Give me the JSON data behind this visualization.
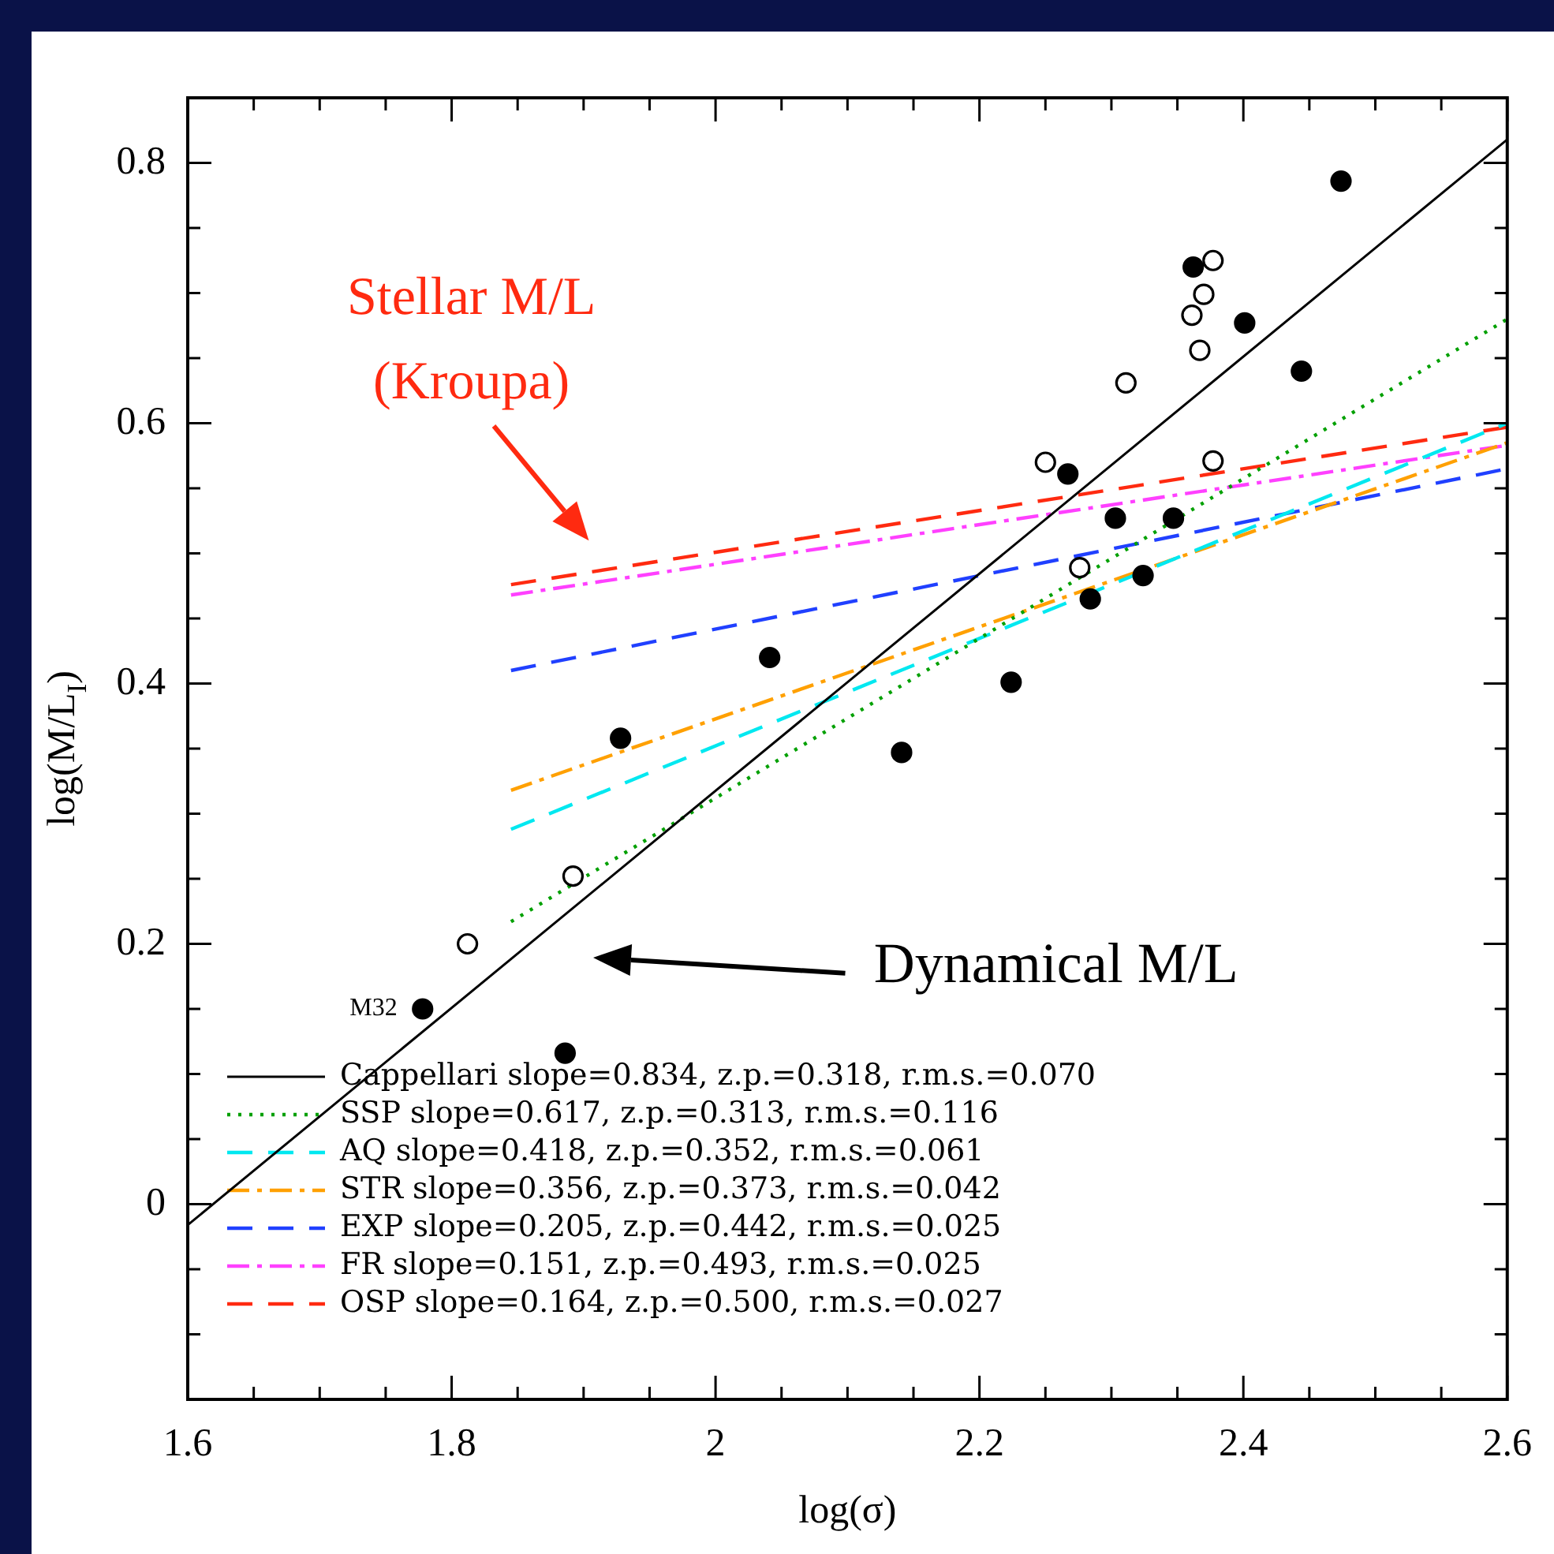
{
  "chart_data": {
    "type": "scatter",
    "xlabel": "log(σ)",
    "ylabel": "log(M/L$_{I}$)",
    "xlim": [
      1.6,
      2.6
    ],
    "ylim": [
      -0.15,
      0.85
    ],
    "xticks": [
      1.6,
      {
        "value": 1.65,
        "label": null
      },
      {
        "value": 1.7,
        "label": null
      },
      {
        "value": 1.75,
        "label": null
      },
      1.8,
      {
        "value": 1.85,
        "label": null
      },
      {
        "value": 1.9,
        "label": null
      },
      {
        "value": 1.95,
        "label": null
      },
      2,
      {
        "value": 2.05,
        "label": null
      },
      {
        "value": 2.1,
        "label": null
      },
      {
        "value": 2.15,
        "label": null
      },
      2.2,
      {
        "value": 2.25,
        "label": null
      },
      {
        "value": 2.3,
        "label": null
      },
      {
        "value": 2.35,
        "label": null
      },
      2.4,
      {
        "value": 2.45,
        "label": null
      },
      {
        "value": 2.5,
        "label": null
      },
      {
        "value": 2.55,
        "label": null
      },
      2.6
    ],
    "yticks": [
      {
        "value": -0.15,
        "label": null
      },
      {
        "value": -0.1,
        "label": null
      },
      {
        "value": -0.05,
        "label": null
      },
      0,
      {
        "value": 0.05,
        "label": null
      },
      {
        "value": 0.1,
        "label": null
      },
      {
        "value": 0.15,
        "label": null
      },
      0.2,
      {
        "value": 0.25,
        "label": null
      },
      {
        "value": 0.3,
        "label": null
      },
      {
        "value": 0.35,
        "label": null
      },
      0.4,
      {
        "value": 0.45,
        "label": null
      },
      {
        "value": 0.5,
        "label": null
      },
      {
        "value": 0.55,
        "label": null
      },
      0.6,
      {
        "value": 0.65,
        "label": null
      },
      {
        "value": 0.7,
        "label": null
      },
      {
        "value": 0.75,
        "label": null
      },
      0.8,
      {
        "value": 0.85,
        "label": null
      }
    ],
    "grid": false,
    "legend": "bottom left",
    "series": [
      {
        "marker": "circle",
        "color": "#000000",
        "x": [
          1.778,
          1.886,
          1.928,
          2.041,
          2.141,
          2.224,
          2.267,
          2.284,
          2.303,
          2.324,
          2.347,
          2.362,
          2.401,
          2.444,
          2.474
        ],
        "values": [
          0.15,
          0.116,
          0.358,
          0.42,
          0.347,
          0.401,
          0.561,
          0.465,
          0.527,
          0.483,
          0.527,
          0.72,
          0.677,
          0.64,
          0.786
        ]
      },
      {
        "marker": "circle_open",
        "color": "#000000",
        "x": [
          1.812,
          1.892,
          2.25,
          2.276,
          2.311,
          2.361,
          2.367,
          2.37,
          2.377,
          2.377
        ],
        "values": [
          0.2,
          0.252,
          0.57,
          0.489,
          0.631,
          0.683,
          0.656,
          0.699,
          0.725,
          0.571
        ]
      },
      {
        "type": "line",
        "name": "Cappellari slope=0.834, z.p.=0.318, r.m.s.=0.070",
        "color": "#000000",
        "line_style": "solid",
        "x": [
          1.6,
          2.6
        ],
        "values": [
          -0.016,
          0.818
        ]
      },
      {
        "type": "line",
        "name": "SSP slope=0.617, z.p.=0.313, r.m.s.=0.116",
        "color": "#00a000",
        "line_style": "dotted",
        "x": [
          1.845,
          2.6
        ],
        "values": [
          0.217,
          0.68
        ]
      },
      {
        "type": "line",
        "name": "AQ slope=0.418, z.p.=0.352, r.m.s.=0.061",
        "color": "#00e8f0",
        "line_style": "dashed",
        "x": [
          1.845,
          2.6
        ],
        "values": [
          0.288,
          0.6
        ]
      },
      {
        "type": "line",
        "name": "STR slope=0.356, z.p.=0.373, r.m.s.=0.042",
        "color": "#ffa000",
        "line_style": "dashdot",
        "x": [
          1.845,
          2.6
        ],
        "values": [
          0.318,
          0.585
        ]
      },
      {
        "type": "line",
        "name": "EXP slope=0.205, z.p.=0.442, r.m.s.=0.025",
        "color": "#2040ff",
        "line_style": "dashed",
        "x": [
          1.845,
          2.6
        ],
        "values": [
          0.41,
          0.565
        ]
      },
      {
        "type": "line",
        "name": "FR slope=0.151, z.p.=0.493, r.m.s.=0.025",
        "color": "#ff40ff",
        "line_style": "dashdot",
        "x": [
          1.845,
          2.6
        ],
        "values": [
          0.468,
          0.583
        ]
      },
      {
        "type": "line",
        "name": "OSP slope=0.164, z.p.=0.500, r.m.s.=0.027",
        "color": "#ff2a10",
        "line_style": "dashed",
        "x": [
          1.845,
          2.6
        ],
        "values": [
          0.476,
          0.597
        ]
      }
    ],
    "annotations": [
      "Stellar M/L\n(Kroupa)",
      "Dynamical M/L",
      {
        "text": "M32",
        "x": 1.778,
        "y": 0.15
      }
    ]
  }
}
